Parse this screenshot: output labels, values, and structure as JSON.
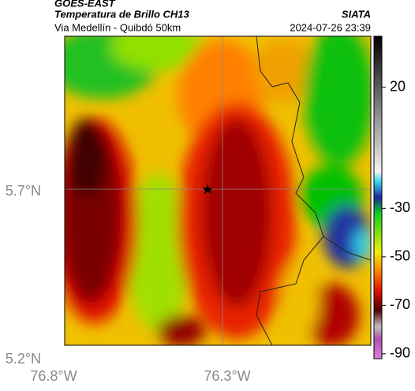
{
  "header": {
    "satellite": "GOES-EAST",
    "product": "Temperatura de Brillo CH13",
    "route": "Via Medellín - Quibdó 50km",
    "source": "SIATA",
    "timestamp": "2024-07-26 23:39"
  },
  "map": {
    "lat_labels": [
      "5.7°N",
      "5.2°N"
    ],
    "lon_labels": [
      "76.8°W",
      "76.3°W"
    ]
  },
  "colorbar": {
    "lim": [
      -92,
      41
    ],
    "ticks": [
      20,
      -30,
      -50,
      -70,
      -90
    ]
  }
}
